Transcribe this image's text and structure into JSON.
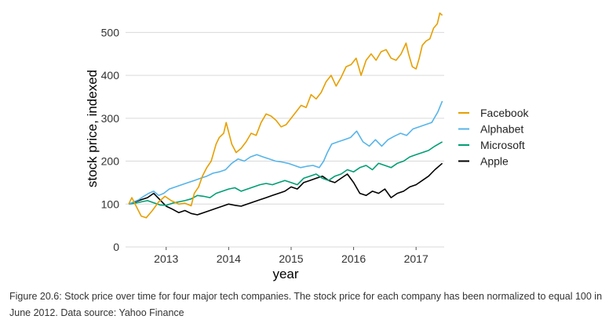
{
  "chart_data": {
    "type": "line",
    "title": "",
    "xlabel": "year",
    "ylabel": "stock price, indexed",
    "xlim": [
      2012.35,
      2017.45
    ],
    "ylim": [
      0,
      550
    ],
    "xticks": [
      2013,
      2014,
      2015,
      2016,
      2017
    ],
    "yticks": [
      0,
      100,
      200,
      300,
      400,
      500
    ],
    "grid": "horizontal",
    "legend_position": "right",
    "series": [
      {
        "name": "Facebook",
        "color": "#E69F00",
        "x": [
          2012.4,
          2012.45,
          2012.52,
          2012.6,
          2012.68,
          2012.78,
          2012.88,
          2012.98,
          2013.08,
          2013.2,
          2013.3,
          2013.4,
          2013.45,
          2013.52,
          2013.58,
          2013.65,
          2013.72,
          2013.8,
          2013.85,
          2013.92,
          2013.96,
          2014.05,
          2014.12,
          2014.2,
          2014.28,
          2014.36,
          2014.44,
          2014.52,
          2014.6,
          2014.68,
          2014.76,
          2014.84,
          2014.92,
          2015.0,
          2015.08,
          2015.16,
          2015.24,
          2015.32,
          2015.4,
          2015.48,
          2015.56,
          2015.64,
          2015.72,
          2015.8,
          2015.88,
          2015.96,
          2016.04,
          2016.12,
          2016.2,
          2016.28,
          2016.36,
          2016.44,
          2016.52,
          2016.6,
          2016.68,
          2016.76,
          2016.84,
          2016.88,
          2016.94,
          2017.0,
          2017.05,
          2017.1,
          2017.16,
          2017.22,
          2017.28,
          2017.34,
          2017.38,
          2017.42
        ],
        "values": [
          100,
          115,
          95,
          72,
          68,
          85,
          105,
          118,
          108,
          100,
          102,
          96,
          125,
          140,
          165,
          185,
          200,
          240,
          255,
          265,
          290,
          240,
          220,
          230,
          245,
          265,
          260,
          290,
          310,
          305,
          295,
          280,
          285,
          300,
          315,
          330,
          325,
          355,
          345,
          360,
          385,
          400,
          375,
          395,
          420,
          425,
          440,
          400,
          435,
          450,
          435,
          455,
          460,
          440,
          435,
          450,
          475,
          450,
          420,
          415,
          440,
          470,
          480,
          485,
          510,
          520,
          545,
          540
        ]
      },
      {
        "name": "Alphabet",
        "color": "#56B4E9",
        "x": [
          2012.4,
          2012.48,
          2012.56,
          2012.64,
          2012.72,
          2012.8,
          2012.88,
          2012.96,
          2013.05,
          2013.15,
          2013.25,
          2013.35,
          2013.45,
          2013.55,
          2013.65,
          2013.75,
          2013.85,
          2013.95,
          2014.05,
          2014.15,
          2014.25,
          2014.35,
          2014.45,
          2014.55,
          2014.65,
          2014.75,
          2014.85,
          2014.95,
          2015.05,
          2015.15,
          2015.25,
          2015.35,
          2015.45,
          2015.52,
          2015.58,
          2015.65,
          2015.75,
          2015.85,
          2015.95,
          2016.05,
          2016.15,
          2016.25,
          2016.35,
          2016.45,
          2016.55,
          2016.65,
          2016.75,
          2016.85,
          2016.95,
          2017.05,
          2017.15,
          2017.25,
          2017.35,
          2017.42
        ],
        "values": [
          100,
          105,
          110,
          118,
          125,
          130,
          120,
          125,
          135,
          140,
          145,
          150,
          155,
          160,
          165,
          172,
          175,
          180,
          195,
          205,
          200,
          210,
          215,
          210,
          205,
          200,
          198,
          195,
          190,
          185,
          188,
          190,
          185,
          200,
          220,
          240,
          245,
          250,
          255,
          270,
          245,
          235,
          250,
          235,
          250,
          258,
          265,
          260,
          275,
          280,
          285,
          290,
          315,
          340
        ]
      },
      {
        "name": "Microsoft",
        "color": "#009E73",
        "x": [
          2012.4,
          2012.5,
          2012.6,
          2012.7,
          2012.8,
          2012.9,
          2013.0,
          2013.1,
          2013.2,
          2013.3,
          2013.4,
          2013.5,
          2013.6,
          2013.7,
          2013.8,
          2013.9,
          2014.0,
          2014.1,
          2014.2,
          2014.3,
          2014.4,
          2014.5,
          2014.6,
          2014.7,
          2014.8,
          2014.9,
          2015.0,
          2015.1,
          2015.2,
          2015.3,
          2015.4,
          2015.5,
          2015.6,
          2015.7,
          2015.8,
          2015.9,
          2016.0,
          2016.1,
          2016.2,
          2016.3,
          2016.4,
          2016.5,
          2016.6,
          2016.7,
          2016.8,
          2016.9,
          2017.0,
          2017.1,
          2017.2,
          2017.3,
          2017.42
        ],
        "values": [
          100,
          102,
          105,
          108,
          103,
          98,
          97,
          102,
          105,
          108,
          112,
          120,
          118,
          115,
          125,
          130,
          135,
          138,
          130,
          135,
          140,
          145,
          148,
          145,
          150,
          155,
          150,
          145,
          160,
          165,
          170,
          160,
          155,
          165,
          170,
          180,
          175,
          185,
          190,
          180,
          195,
          190,
          185,
          195,
          200,
          210,
          215,
          220,
          225,
          235,
          245
        ]
      },
      {
        "name": "Apple",
        "color": "#000000",
        "x": [
          2012.4,
          2012.5,
          2012.6,
          2012.7,
          2012.8,
          2012.9,
          2013.0,
          2013.1,
          2013.2,
          2013.3,
          2013.4,
          2013.5,
          2013.6,
          2013.7,
          2013.8,
          2013.9,
          2014.0,
          2014.1,
          2014.2,
          2014.3,
          2014.4,
          2014.5,
          2014.6,
          2014.7,
          2014.8,
          2014.9,
          2015.0,
          2015.1,
          2015.2,
          2015.3,
          2015.4,
          2015.5,
          2015.6,
          2015.7,
          2015.8,
          2015.9,
          2016.0,
          2016.1,
          2016.2,
          2016.3,
          2016.4,
          2016.5,
          2016.6,
          2016.7,
          2016.8,
          2016.9,
          2017.0,
          2017.1,
          2017.2,
          2017.3,
          2017.42
        ],
        "values": [
          100,
          105,
          110,
          115,
          125,
          110,
          95,
          88,
          80,
          85,
          78,
          75,
          80,
          85,
          90,
          95,
          100,
          97,
          95,
          100,
          105,
          110,
          115,
          120,
          125,
          130,
          140,
          135,
          150,
          155,
          160,
          165,
          155,
          150,
          160,
          170,
          150,
          125,
          120,
          130,
          125,
          135,
          115,
          125,
          130,
          140,
          145,
          155,
          165,
          180,
          195
        ]
      }
    ],
    "caption": "Figure 20.6: Stock price over time for four major tech companies. The stock price for each company has been normalized to equal 100 in June 2012. Data source: Yahoo Finance"
  }
}
